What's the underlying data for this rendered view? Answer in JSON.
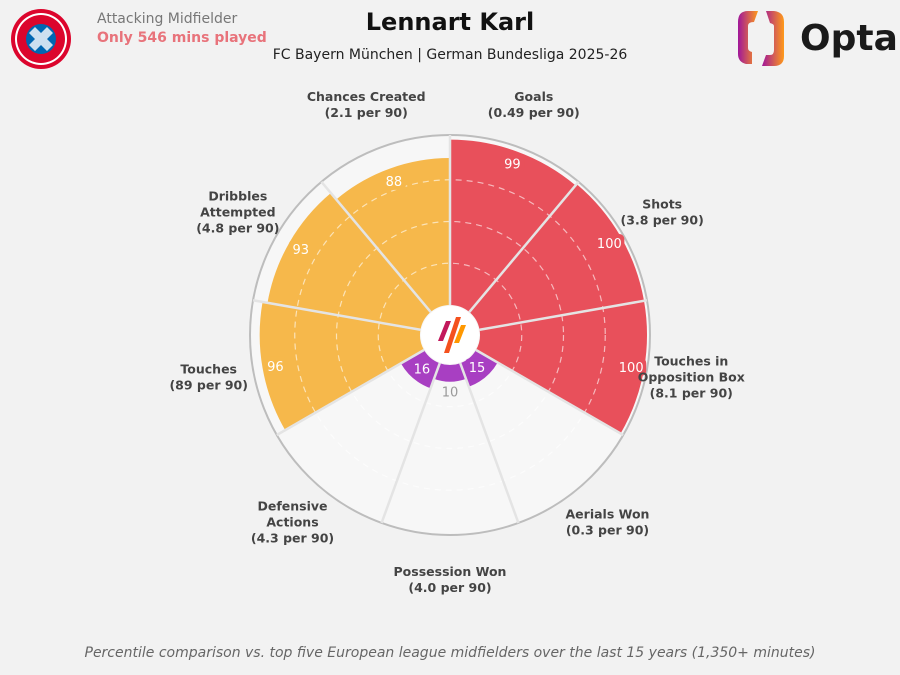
{
  "header": {
    "role": "Attacking Midfielder",
    "minutes_note": "Only 546 mins played",
    "player": "Lennart Karl",
    "subtitle": "FC Bayern München | German Bundesliga 2025-26",
    "brand": "Opta",
    "club_logo": "fc-bayern-crest"
  },
  "footer": "Percentile comparison vs. top five European league midfielders over the last 15 years (1,350+ minutes)",
  "colors": {
    "attacking": "#e8505b",
    "possession": "#f6b84b",
    "defending": "#a83fc2",
    "background": "#f2f2f2"
  },
  "chart_data": {
    "type": "pie",
    "subtype": "radial percentile (pizza) chart",
    "range": [
      0,
      100
    ],
    "grid": true,
    "categories": [
      {
        "label": [
          "Goals",
          "(0.49 per 90)"
        ],
        "value": 99,
        "group": "attacking"
      },
      {
        "label": [
          "Shots",
          "(3.8 per 90)"
        ],
        "value": 100,
        "group": "attacking"
      },
      {
        "label": [
          "Touches in",
          "Opposition Box",
          "(8.1 per 90)"
        ],
        "value": 100,
        "group": "attacking"
      },
      {
        "label": [
          "Aerials Won",
          "(0.3 per 90)"
        ],
        "value": 15,
        "group": "defending"
      },
      {
        "label": [
          "Possession Won",
          "(4.0 per 90)"
        ],
        "value": 10,
        "group": "defending"
      },
      {
        "label": [
          "Defensive",
          "Actions",
          "(4.3 per 90)"
        ],
        "value": 16,
        "group": "defending"
      },
      {
        "label": [
          "Touches",
          "(89 per 90)"
        ],
        "value": 96,
        "group": "possession"
      },
      {
        "label": [
          "Dribbles",
          "Attempted",
          "(4.8 per 90)"
        ],
        "value": 93,
        "group": "possession"
      },
      {
        "label": [
          "Chances Created",
          "(2.1 per 90)"
        ],
        "value": 88,
        "group": "possession"
      }
    ]
  }
}
